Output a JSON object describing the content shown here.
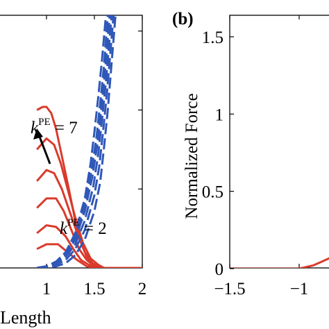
{
  "colors": {
    "active": "#d93a2b",
    "passive": "#2f57b8",
    "axis": "#000000"
  },
  "chart_data": [
    {
      "type": "line",
      "panel_label": "",
      "xlabel": "Length",
      "ylabel": "",
      "xlim": [
        0.5,
        2
      ],
      "ylim": [
        0,
        1.6
      ],
      "x_tick_labels": [
        "1",
        "1.5",
        "2"
      ],
      "x_ticks": [
        1,
        1.5,
        2
      ],
      "y_ticks": [
        0.5,
        1,
        1.5
      ],
      "annotations": [
        {
          "prefix": "k",
          "superscript": "PE",
          "suffix": " = 7"
        },
        {
          "prefix": "k",
          "superscript": "PE",
          "suffix": " = 2"
        }
      ],
      "series_active": [
        {
          "x": [
            0.9,
            0.96,
            1.0,
            1.05,
            1.1,
            1.17,
            1.24,
            1.3,
            1.36,
            1.42,
            1.48,
            1.54,
            1.6,
            1.68,
            2.0
          ],
          "y": [
            1.0,
            1.02,
            1.02,
            0.98,
            0.88,
            0.68,
            0.48,
            0.3,
            0.16,
            0.07,
            0.03,
            0.01,
            0.0,
            0.0,
            0.0
          ]
        },
        {
          "x": [
            0.9,
            1.0,
            1.08,
            1.15,
            1.22,
            1.3,
            1.38,
            1.46,
            1.54,
            1.6,
            2.0
          ],
          "y": [
            0.75,
            0.82,
            0.78,
            0.66,
            0.5,
            0.32,
            0.16,
            0.06,
            0.02,
            0.0,
            0.0
          ]
        },
        {
          "x": [
            0.9,
            1.0,
            1.08,
            1.16,
            1.24,
            1.32,
            1.4,
            1.48,
            1.56,
            2.0
          ],
          "y": [
            0.55,
            0.62,
            0.6,
            0.5,
            0.36,
            0.22,
            0.1,
            0.03,
            0.0,
            0.0
          ]
        },
        {
          "x": [
            0.9,
            1.0,
            1.1,
            1.18,
            1.26,
            1.34,
            1.42,
            1.5,
            1.56,
            2.0
          ],
          "y": [
            0.38,
            0.44,
            0.44,
            0.36,
            0.24,
            0.12,
            0.05,
            0.01,
            0.0,
            0.0
          ]
        },
        {
          "x": [
            0.9,
            1.0,
            1.1,
            1.2,
            1.28,
            1.36,
            1.44,
            1.52,
            2.0
          ],
          "y": [
            0.22,
            0.27,
            0.26,
            0.2,
            0.12,
            0.05,
            0.02,
            0.0,
            0.0
          ]
        },
        {
          "x": [
            0.9,
            1.0,
            1.12,
            1.22,
            1.32,
            1.42,
            1.5,
            2.0
          ],
          "y": [
            0.12,
            0.15,
            0.15,
            0.1,
            0.05,
            0.01,
            0.0,
            0.0
          ]
        }
      ],
      "series_passive": [
        {
          "x": [
            0.9,
            1.0,
            1.1,
            1.2,
            1.3,
            1.4,
            1.46,
            1.5,
            1.54,
            1.58,
            1.62
          ],
          "y": [
            0.0,
            0.01,
            0.04,
            0.1,
            0.22,
            0.44,
            0.66,
            0.86,
            1.08,
            1.32,
            1.6
          ]
        },
        {
          "x": [
            0.9,
            1.0,
            1.1,
            1.2,
            1.3,
            1.4,
            1.47,
            1.52,
            1.56,
            1.6,
            1.64
          ],
          "y": [
            0.0,
            0.01,
            0.04,
            0.09,
            0.2,
            0.4,
            0.62,
            0.82,
            1.04,
            1.28,
            1.6
          ]
        },
        {
          "x": [
            0.9,
            1.0,
            1.1,
            1.2,
            1.3,
            1.4,
            1.48,
            1.53,
            1.57,
            1.61,
            1.66
          ],
          "y": [
            0.0,
            0.01,
            0.03,
            0.08,
            0.18,
            0.36,
            0.58,
            0.78,
            1.0,
            1.24,
            1.6
          ]
        },
        {
          "x": [
            0.9,
            1.0,
            1.1,
            1.2,
            1.3,
            1.4,
            1.49,
            1.54,
            1.58,
            1.62,
            1.68
          ],
          "y": [
            0.0,
            0.01,
            0.03,
            0.07,
            0.15,
            0.3,
            0.52,
            0.72,
            0.94,
            1.18,
            1.6
          ]
        },
        {
          "x": [
            0.9,
            1.0,
            1.1,
            1.2,
            1.3,
            1.4,
            1.5,
            1.55,
            1.59,
            1.63,
            1.7
          ],
          "y": [
            0.0,
            0.01,
            0.02,
            0.05,
            0.12,
            0.24,
            0.46,
            0.64,
            0.86,
            1.1,
            1.6
          ]
        },
        {
          "x": [
            0.9,
            1.0,
            1.1,
            1.2,
            1.3,
            1.4,
            1.5,
            1.56,
            1.6,
            1.64,
            1.72
          ],
          "y": [
            0.0,
            0.0,
            0.01,
            0.03,
            0.08,
            0.18,
            0.36,
            0.54,
            0.76,
            1.0,
            1.6
          ]
        }
      ]
    },
    {
      "type": "line",
      "panel_label": "(b)",
      "xlabel": "",
      "ylabel": "Normalized Force",
      "xlim": [
        -1.5,
        -0.7
      ],
      "ylim": [
        -0.05,
        1.6
      ],
      "x_tick_labels": [
        "−1.5",
        "−1"
      ],
      "x_ticks": [
        -1.5,
        -1
      ],
      "y_tick_labels": [
        "0",
        "0.5",
        "1",
        "1.5"
      ],
      "y_ticks": [
        0,
        0.5,
        1,
        1.5
      ],
      "series": [
        {
          "x": [
            -1.5,
            -1.2,
            -1.0,
            -0.9,
            -0.85,
            -0.8,
            -0.75,
            -0.7
          ],
          "y": [
            0.0,
            0.0,
            0.0,
            0.02,
            0.04,
            0.06,
            0.08,
            0.1
          ]
        }
      ]
    }
  ]
}
